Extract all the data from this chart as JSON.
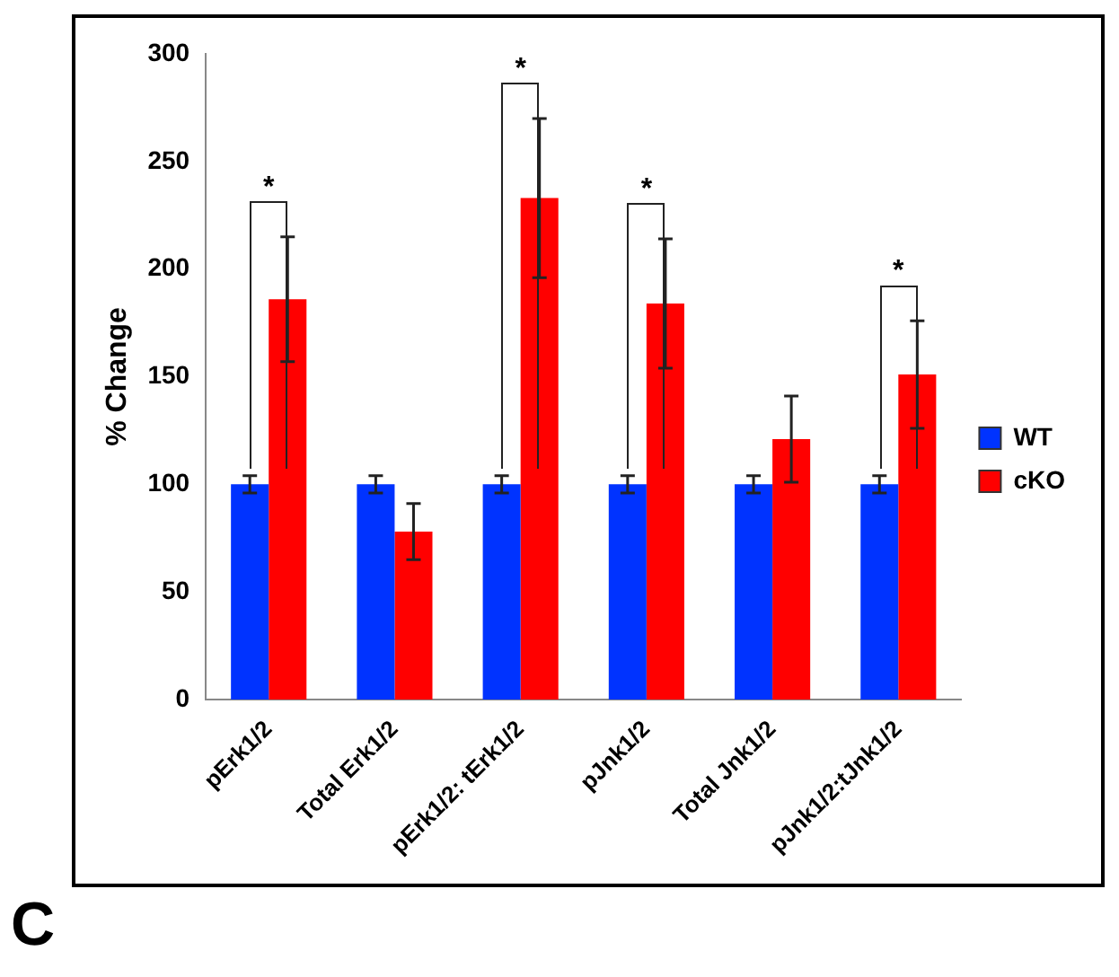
{
  "chart_data": {
    "type": "bar",
    "ylabel": "% Change",
    "categories": [
      "pErk1/2",
      "Total Erk1/2",
      "pErk1/2: tErk1/2",
      "pJnk1/2",
      "Total Jnk1/2",
      "pJnk1/2:tJnk1/2"
    ],
    "series": [
      {
        "name": "WT",
        "color": "#0033ff",
        "values": [
          100,
          100,
          100,
          100,
          100,
          100
        ],
        "errors": [
          4,
          4,
          4,
          4,
          4,
          4
        ]
      },
      {
        "name": "cKO",
        "color": "#ff0000",
        "values": [
          186,
          78,
          233,
          184,
          121,
          151
        ],
        "errors": [
          29,
          13,
          37,
          30,
          20,
          25
        ]
      }
    ],
    "ylim": [
      0,
      300
    ],
    "yticks": [
      0,
      50,
      100,
      150,
      200,
      250,
      300
    ],
    "grid": false,
    "legend": "right",
    "annotations": [
      "*",
      "*",
      "*",
      "*",
      "C"
    ]
  }
}
